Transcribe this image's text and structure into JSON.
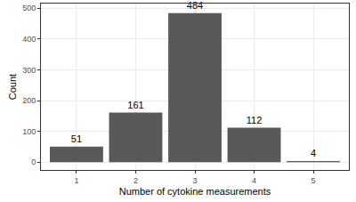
{
  "chart_data": {
    "type": "bar",
    "x_label": "Number of cytokine measurements",
    "y_label": "Count",
    "categories": [
      "1",
      "2",
      "3",
      "4",
      "5"
    ],
    "values": [
      51,
      161,
      484,
      112,
      4
    ],
    "color": "#595959",
    "ylim": [
      -25,
      515
    ],
    "yticks": [
      0,
      100,
      200,
      300,
      400,
      500
    ],
    "grid": true,
    "data_labels": true
  }
}
